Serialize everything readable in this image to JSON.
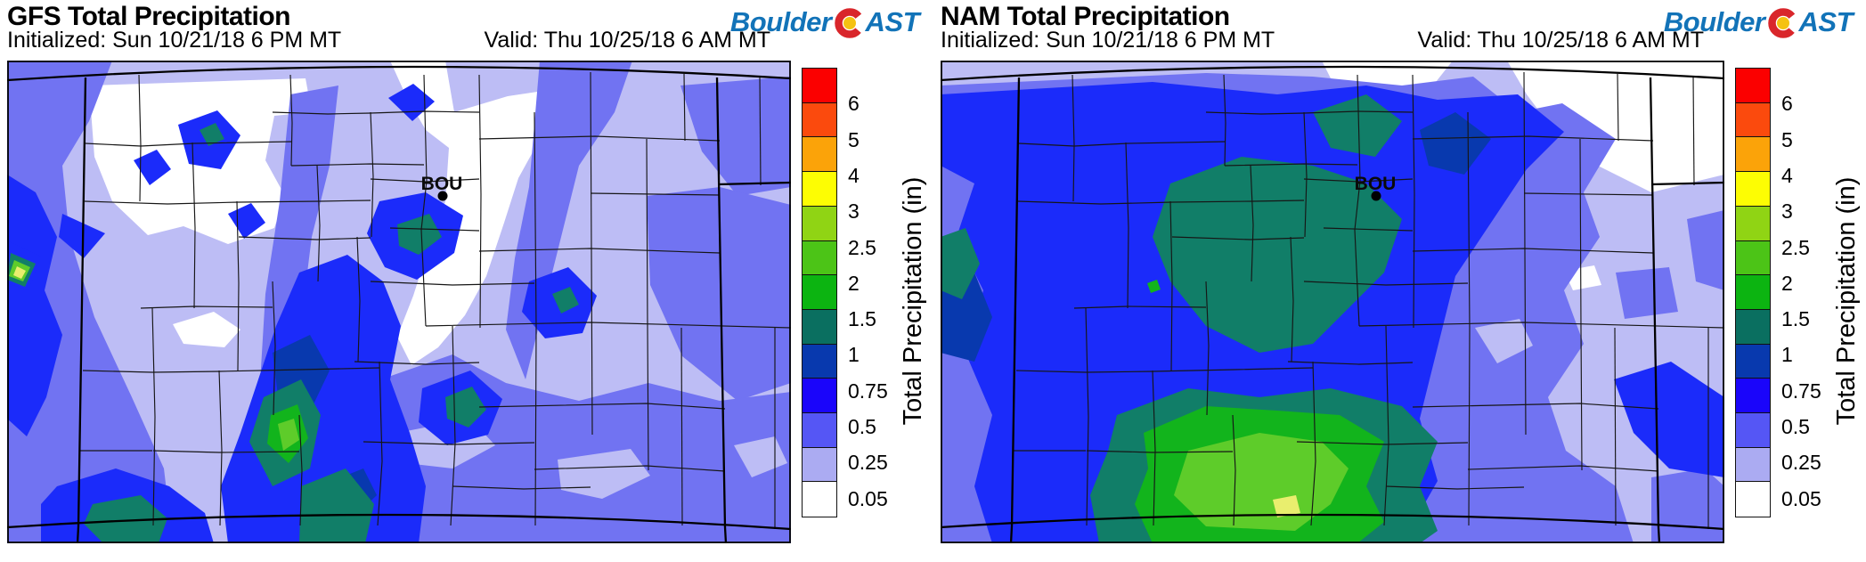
{
  "palette": {
    "red": "#FB0000",
    "orangered": "#FB4A0D",
    "orange": "#FBA309",
    "yellow": "#FDFD03",
    "ylwgrn": "#90D414",
    "lime": "#4CC417",
    "green": "#0CB411",
    "teal": "#0A6F60",
    "navy": "#0839AE",
    "blue": "#1A05FA",
    "slate": "#5556F5",
    "lavender": "#ABABF2",
    "white": "#FFFFFF",
    "map_lavender": "#BDBDF5",
    "map_slate": "#7173F2",
    "map_blue": "#1B2BFA",
    "map_teal": "#117E68",
    "map_green": "#12B41C",
    "map_lime": "#5ECC2A",
    "map_paleyellow": "#E9EE6E",
    "logo_blue": "#1273B8",
    "logo_red": "#D9262B",
    "logo_gold": "#F5C211"
  },
  "logo": {
    "part1": "Boulder",
    "part2": "AST"
  },
  "colorbar": {
    "title": "Total Precipitation (in)",
    "tick_labels": [
      "6",
      "5",
      "4",
      "3",
      "2.5",
      "2",
      "1.5",
      "1",
      "0.75",
      "0.5",
      "0.25",
      "0.05"
    ],
    "swatch_colors": [
      "#FB0000",
      "#FB4A0D",
      "#FBA309",
      "#FDFD03",
      "#90D414",
      "#4CC417",
      "#0CB411",
      "#0A6F60",
      "#0839AE",
      "#1A05FA",
      "#5556F5",
      "#ABABF2",
      "#FFFFFF"
    ]
  },
  "panels": [
    {
      "model": "GFS",
      "title": "GFS Total Precipitation",
      "initialized": "Initialized: Sun 10/21/18 6 PM MT",
      "valid": "Valid: Thu 10/25/18 6 AM MT",
      "station_label": "BOU"
    },
    {
      "model": "NAM",
      "title": "NAM Total Precipitation",
      "initialized": "Initialized: Sun 10/21/18 6 PM MT",
      "valid": "Valid: Thu 10/25/18 6 AM MT",
      "station_label": "BOU"
    }
  ],
  "chart_data": {
    "type": "contour_map_pair",
    "variable": "Total Precipitation",
    "units": "in",
    "region": "Colorado (state and county borders shown)",
    "station_marker": {
      "label": "BOU"
    },
    "contour_levels": [
      0.05,
      0.25,
      0.5,
      0.75,
      1,
      1.5,
      2,
      2.5,
      3,
      4,
      5,
      6
    ],
    "level_colors_low_to_high": [
      "#FFFFFF",
      "#ABABF2",
      "#5556F5",
      "#1A05FA",
      "#0839AE",
      "#0A6F60",
      "#0CB411",
      "#4CC417",
      "#90D414",
      "#FDFD03",
      "#FBA309",
      "#FB4A0D",
      "#FB0000"
    ],
    "legend_title": "Total Precipitation (in)",
    "maps": [
      {
        "model": "GFS",
        "initialized": "Sun 10/21/18 6 PM MT",
        "valid": "Thu 10/25/18 6 AM MT",
        "pattern_summary": "Cellular north-south bands of 0.5-1.5 in along the central and southern mountains with small 1.5-2.5 in teal cores; isolated 2-3 in green cores in the south-central mountains and at the far west edge; 0.05-0.5 in over most plains; dry (<0.05 in) pockets over the northwest and northeast plains.",
        "approx_max_in": 3
      },
      {
        "model": "NAM",
        "initialized": "Sun 10/21/18 6 PM MT",
        "valid": "Thu 10/25/18 6 AM MT",
        "pattern_summary": "Broad smooth 0.5-1 in over the western two-thirds; large 1-1.5 in mass across the central mountains; 2-3 in green blob in the south-central mountains with a small 3-4 in spot; driest (<0.05 in) in the far northeast corner.",
        "approx_max_in": 4
      }
    ]
  }
}
